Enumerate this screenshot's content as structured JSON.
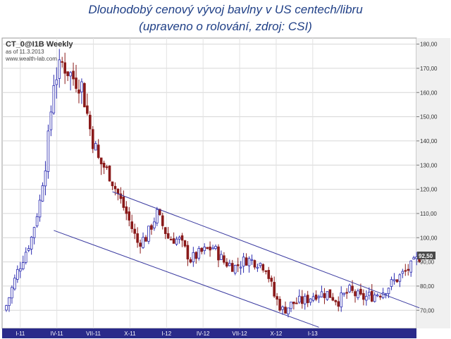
{
  "heading": {
    "line1": "Dlouhodobý cenový vývoj bavlny v US centech/libru",
    "line2": "(upraveno o rolování, zdroj: CSI)"
  },
  "chart_info": {
    "symbol": "CT_0@I1B Weekly",
    "as_of": "as of 11.3.2013",
    "website": "www.wealth-lab.com"
  },
  "colors": {
    "up": "#2b2bb0",
    "down": "#8a1a1a",
    "trendline": "#3a3aa0",
    "axis_band": "#2a2a8a"
  },
  "chart_data": {
    "type": "candlestick",
    "y_ticks": [
      "70,00",
      "80,00",
      "90,00",
      "100,00",
      "110,00",
      "120,00",
      "130,00",
      "140,00",
      "150,00",
      "160,00",
      "170,00",
      "180,00"
    ],
    "x_ticks": [
      "I-11",
      "IV-11",
      "VII-11",
      "X-11",
      "I-12",
      "IV-12",
      "VII-12",
      "X-12",
      "I-13"
    ],
    "ylim": [
      62.5,
      182.5
    ],
    "last_price": "92,50",
    "waypoints": [
      [
        0,
        72
      ],
      [
        4,
        86
      ],
      [
        9,
        100
      ],
      [
        12,
        115
      ],
      [
        15,
        140
      ],
      [
        17,
        165
      ],
      [
        20,
        172
      ],
      [
        24,
        166
      ],
      [
        27,
        163
      ],
      [
        30,
        145
      ],
      [
        33,
        132
      ],
      [
        36,
        128
      ],
      [
        40,
        118
      ],
      [
        43,
        110
      ],
      [
        47,
        98
      ],
      [
        50,
        100
      ],
      [
        54,
        110
      ],
      [
        58,
        100
      ],
      [
        62,
        99
      ],
      [
        66,
        91
      ],
      [
        70,
        94
      ],
      [
        74,
        96
      ],
      [
        78,
        90
      ],
      [
        82,
        88
      ],
      [
        86,
        91
      ],
      [
        90,
        90
      ],
      [
        93,
        88
      ],
      [
        96,
        76
      ],
      [
        99,
        70
      ],
      [
        103,
        73
      ],
      [
        107,
        74
      ],
      [
        111,
        77
      ],
      [
        115,
        77
      ],
      [
        119,
        74
      ],
      [
        123,
        78
      ],
      [
        127,
        75
      ],
      [
        131,
        76
      ],
      [
        135,
        78
      ],
      [
        138,
        81
      ],
      [
        141,
        84
      ],
      [
        145,
        88
      ],
      [
        148,
        92
      ]
    ],
    "channel_upper": [
      [
        38,
        119
      ],
      [
        148,
        71
      ]
    ],
    "channel_lower": [
      [
        17,
        103
      ],
      [
        112,
        63
      ]
    ],
    "candles_count": 149
  }
}
